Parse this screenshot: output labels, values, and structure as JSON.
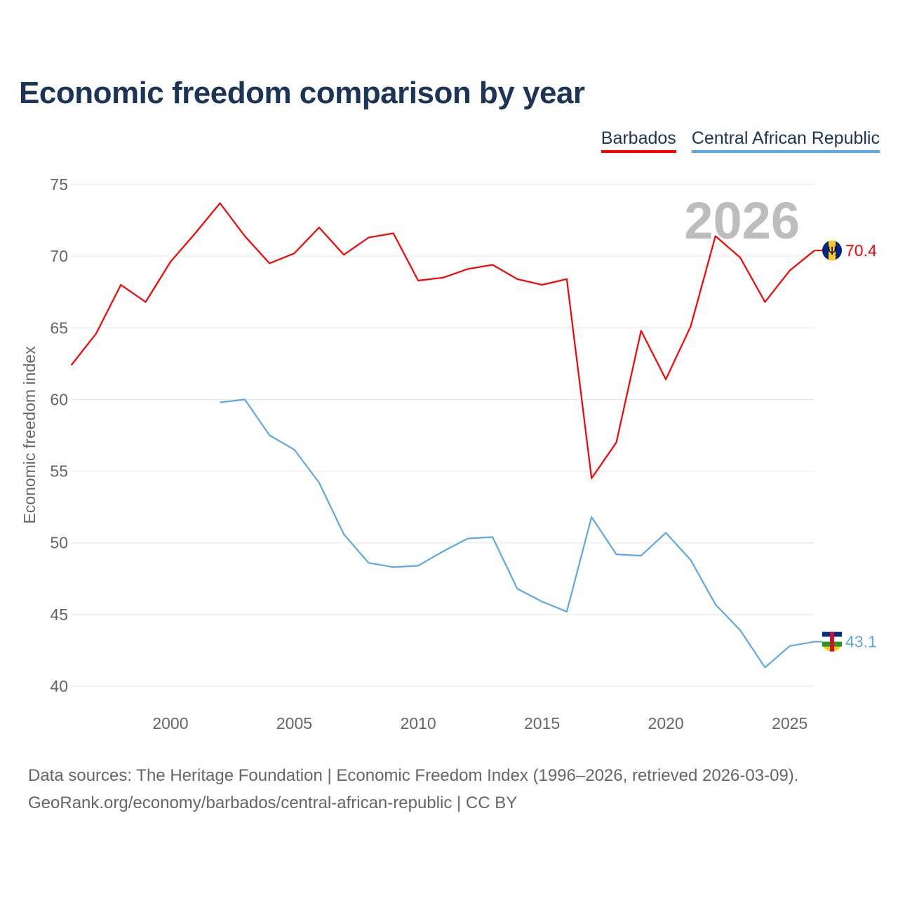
{
  "title": "Economic freedom comparison by year",
  "legend": [
    {
      "label": "Barbados",
      "color": "#ff0000"
    },
    {
      "label": "Central African Republic",
      "color": "#5fa8e8"
    }
  ],
  "year_watermark": "2026",
  "footer": {
    "line1": "Data sources: The Heritage Foundation | Economic Freedom Index (1996–2026, retrieved 2026-03-09).",
    "line2": "GeoRank.org/economy/barbados/central-african-republic | CC BY"
  },
  "chart_data": {
    "type": "line",
    "title": "Economic freedom comparison by year",
    "xlabel": "",
    "ylabel": "Economic freedom index",
    "xlim": [
      1996,
      2026
    ],
    "ylim": [
      40,
      75
    ],
    "yticks": [
      40,
      45,
      50,
      55,
      60,
      65,
      70,
      75
    ],
    "xticks": [
      2000,
      2005,
      2010,
      2015,
      2020,
      2025
    ],
    "grid": true,
    "legend_position": "top-right",
    "series": [
      {
        "name": "Barbados",
        "color": "#ff0000",
        "end_label": "70.4",
        "x": [
          1996,
          1997,
          1998,
          1999,
          2000,
          2001,
          2002,
          2003,
          2004,
          2005,
          2006,
          2007,
          2008,
          2009,
          2010,
          2011,
          2012,
          2013,
          2014,
          2015,
          2016,
          2017,
          2018,
          2019,
          2020,
          2021,
          2022,
          2023,
          2024,
          2025,
          2026
        ],
        "values": [
          62.4,
          64.6,
          68.0,
          66.8,
          69.6,
          71.6,
          73.7,
          71.4,
          69.5,
          70.2,
          72.0,
          70.1,
          71.3,
          71.6,
          68.3,
          68.5,
          69.1,
          69.4,
          68.4,
          68.0,
          68.4,
          54.5,
          57.0,
          64.8,
          61.4,
          65.1,
          71.4,
          69.9,
          66.8,
          69.0,
          70.4
        ]
      },
      {
        "name": "Central African Republic",
        "color": "#5fa8e8",
        "end_label": "43.1",
        "x": [
          2002,
          2003,
          2004,
          2005,
          2006,
          2007,
          2008,
          2009,
          2010,
          2011,
          2012,
          2013,
          2014,
          2015,
          2016,
          2017,
          2018,
          2019,
          2020,
          2021,
          2022,
          2023,
          2024,
          2025,
          2026
        ],
        "values": [
          59.8,
          60.0,
          57.5,
          56.5,
          54.2,
          50.6,
          48.6,
          48.3,
          48.4,
          49.4,
          50.3,
          50.4,
          46.8,
          45.9,
          45.2,
          51.8,
          49.2,
          49.1,
          50.7,
          48.8,
          45.7,
          43.9,
          41.3,
          42.8,
          43.1
        ]
      }
    ]
  }
}
